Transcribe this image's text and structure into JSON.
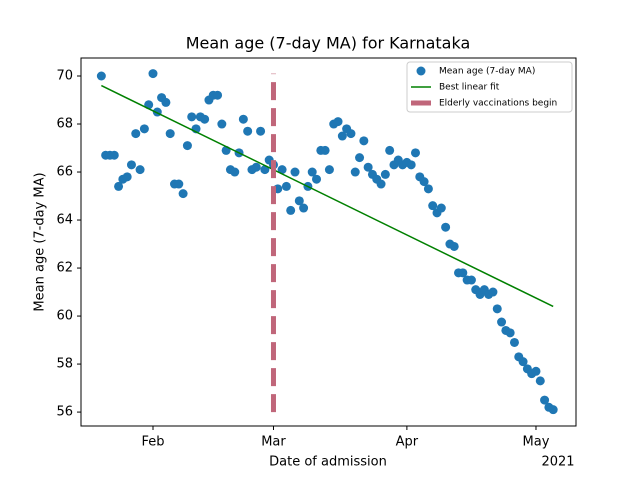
{
  "chart_data": {
    "type": "scatter",
    "title": "Mean age (7-day MA) for Karnataka",
    "xlabel": "Date of admission",
    "ylabel": "Mean age (7-day MA)",
    "x_offset_label": "2021",
    "xlim": [
      15.27,
      130.3
    ],
    "ylim": [
      55.42,
      70.75
    ],
    "xticks": [
      {
        "value": 32,
        "label": "Feb"
      },
      {
        "value": 60,
        "label": "Mar"
      },
      {
        "value": 91,
        "label": "Apr"
      },
      {
        "value": 121,
        "label": "May"
      }
    ],
    "yticks": [
      56,
      58,
      60,
      62,
      64,
      66,
      68,
      70
    ],
    "legend": "upper right",
    "series": [
      {
        "name": "Mean age (7-day MA)",
        "mark": "scatter",
        "color": "#1f77b4",
        "x": [
          20,
          21,
          22,
          23,
          24,
          25,
          26,
          27,
          28,
          29,
          30,
          31,
          32,
          33,
          34,
          35,
          36,
          37,
          38,
          39,
          40,
          41,
          42,
          43,
          44,
          45,
          46,
          47,
          48,
          49,
          50,
          51,
          52,
          53,
          54,
          55,
          56,
          57,
          58,
          59,
          60,
          61,
          62,
          63,
          64,
          65,
          66,
          67,
          68,
          69,
          70,
          71,
          72,
          73,
          74,
          75,
          76,
          77,
          78,
          79,
          80,
          81,
          82,
          83,
          84,
          85,
          86,
          87,
          88,
          89,
          90,
          91,
          92,
          93,
          94,
          95,
          96,
          97,
          98,
          99,
          100,
          101,
          102,
          103,
          104,
          105,
          106,
          107,
          108,
          109,
          110,
          111,
          112,
          113,
          114,
          115,
          116,
          117,
          118,
          119,
          120,
          121,
          122,
          123,
          124,
          125
        ],
        "values": [
          70.0,
          66.7,
          66.7,
          66.7,
          65.4,
          65.7,
          65.8,
          66.3,
          67.6,
          66.1,
          67.8,
          68.8,
          70.1,
          68.5,
          69.1,
          68.9,
          67.6,
          65.5,
          65.5,
          65.1,
          67.1,
          68.3,
          67.8,
          68.3,
          68.2,
          69.0,
          69.2,
          69.2,
          68.0,
          66.9,
          66.1,
          66.0,
          66.8,
          68.2,
          67.7,
          66.1,
          66.2,
          67.7,
          66.1,
          66.5,
          66.3,
          65.3,
          66.1,
          65.4,
          64.4,
          66.0,
          64.8,
          64.5,
          65.4,
          66.0,
          65.7,
          66.9,
          66.9,
          66.1,
          68.0,
          68.1,
          67.5,
          67.8,
          67.6,
          66.0,
          66.6,
          67.3,
          66.2,
          65.9,
          65.7,
          65.5,
          65.9,
          66.9,
          66.3,
          66.5,
          66.3,
          66.4,
          66.3,
          66.8,
          65.8,
          65.6,
          65.3,
          64.6,
          64.3,
          64.5,
          63.7,
          63.0,
          62.9,
          61.8,
          61.8,
          61.5,
          61.5,
          61.1,
          60.9,
          61.1,
          60.9,
          61.0,
          60.3,
          59.75,
          59.4,
          59.3,
          58.9,
          58.3,
          58.1,
          57.8,
          57.6,
          57.7,
          57.3,
          56.5,
          56.2,
          56.1
        ]
      },
      {
        "name": "Best linear fit",
        "mark": "line",
        "color": "#008000",
        "x": [
          20,
          125
        ],
        "values": [
          69.6,
          60.4
        ]
      },
      {
        "name": "Elderly vaccinations begin",
        "mark": "line",
        "linestyle": "dashed",
        "color": "#c0667a",
        "x": [
          60,
          60
        ],
        "values": [
          56.0,
          70.1
        ]
      }
    ]
  }
}
